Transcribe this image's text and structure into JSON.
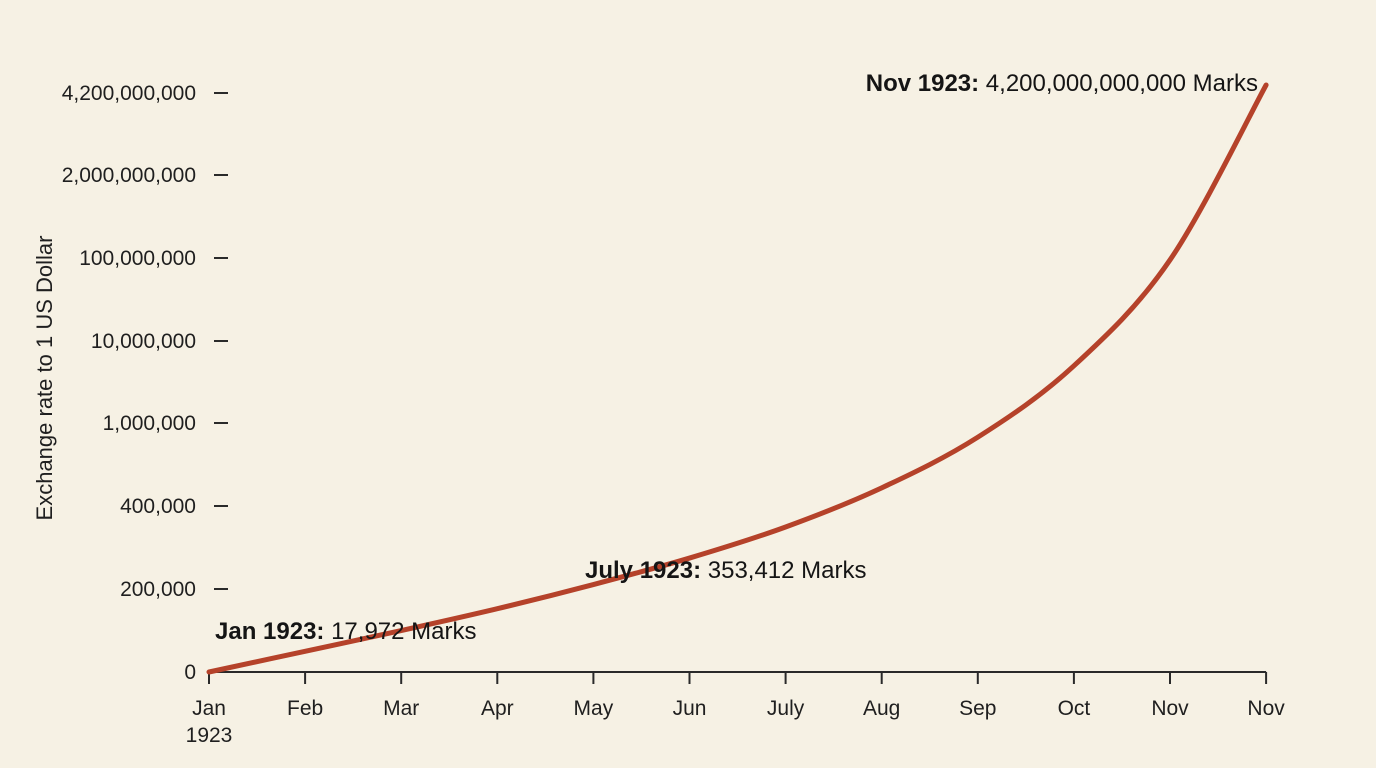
{
  "chart_data": {
    "type": "line",
    "title": "",
    "xlabel": "",
    "ylabel": "Exchange rate to 1 US Dollar",
    "x_ticks": [
      [
        "Jan",
        "1923"
      ],
      [
        "Feb"
      ],
      [
        "Mar"
      ],
      [
        "Apr"
      ],
      [
        "May"
      ],
      [
        "Jun"
      ],
      [
        "July"
      ],
      [
        "Aug"
      ],
      [
        "Sep"
      ],
      [
        "Oct"
      ],
      [
        "Nov"
      ],
      [
        "Nov"
      ]
    ],
    "y_ticks": [
      "0",
      "200,000",
      "400,000",
      "1,000,000",
      "10,000,000",
      "100,000,000",
      "2,000,000,000",
      "4,200,000,000"
    ],
    "series": [
      {
        "values": [
          0,
          18,
          36,
          55,
          76,
          99,
          126,
          160,
          204,
          266,
          358,
          510
        ]
      }
    ],
    "y_scale": "non-linear (tick positions evenly spaced)",
    "grid": false,
    "line_color": "#b5422a",
    "annotations": [
      {
        "bold": "Jan 1923:",
        "text": " 17,972 Marks"
      },
      {
        "bold": "July 1923:",
        "text": " 353,412 Marks"
      },
      {
        "bold": "Nov 1923:",
        "text": " 4,200,000,000,000 Marks"
      }
    ]
  }
}
